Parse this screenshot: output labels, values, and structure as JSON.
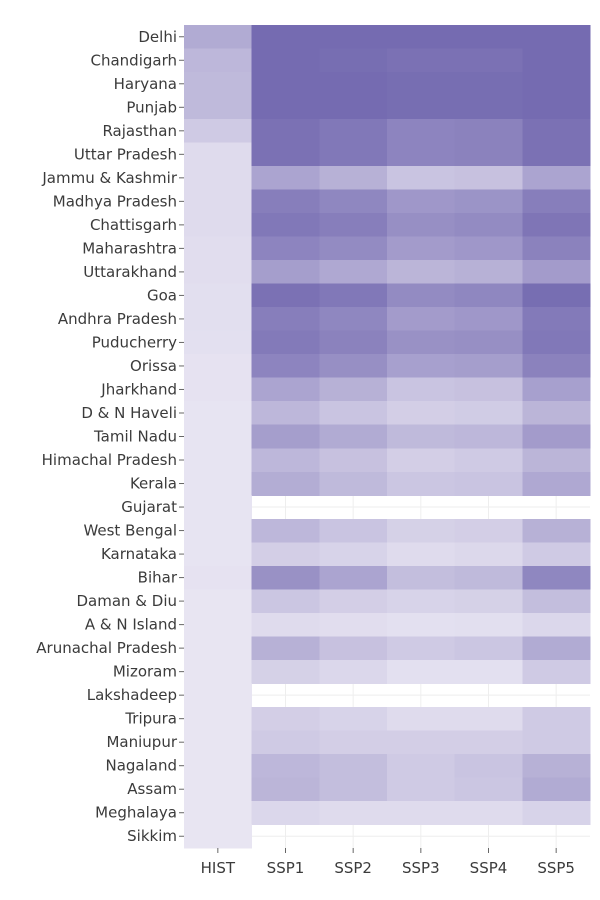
{
  "chart_data": {
    "type": "heatmap",
    "title": "",
    "xlabel": "",
    "ylabel": "",
    "colorscale": {
      "low": "#edeaf5",
      "high": "#756bb1"
    },
    "value_range": [
      0,
      1
    ],
    "x": [
      "HIST",
      "SSP1",
      "SSP2",
      "SSP3",
      "SSP4",
      "SSP5"
    ],
    "y": [
      "Delhi",
      "Chandigarh",
      "Haryana",
      "Punjab",
      "Rajasthan",
      "Uttar Pradesh",
      "Jammu & Kashmir",
      "Madhya Pradesh",
      "Chattisgarh",
      "Maharashtra",
      "Uttarakhand",
      "Goa",
      "Andhra Pradesh",
      "Puducherry",
      "Orissa",
      "Jharkhand",
      "D & N Haveli",
      "Tamil Nadu",
      "Himachal Pradesh",
      "Kerala",
      "Gujarat",
      "West Bengal",
      "Karnataka",
      "Bihar",
      "Daman & Diu",
      "A & N Island",
      "Arunachal Pradesh",
      "Mizoram",
      "Lakshadeep",
      "Tripura",
      "Maniupur",
      "Nagaland",
      "Assam",
      "Meghalaya",
      "Sikkim"
    ],
    "z": [
      [
        0.5,
        1.0,
        1.0,
        1.0,
        1.0,
        1.0
      ],
      [
        0.4,
        1.0,
        0.98,
        0.95,
        0.95,
        1.0
      ],
      [
        0.38,
        1.0,
        1.0,
        0.98,
        0.98,
        1.0
      ],
      [
        0.38,
        1.0,
        1.0,
        0.98,
        0.98,
        1.0
      ],
      [
        0.25,
        0.95,
        0.9,
        0.8,
        0.82,
        0.95
      ],
      [
        0.12,
        0.95,
        0.9,
        0.8,
        0.82,
        0.95
      ],
      [
        0.12,
        0.55,
        0.45,
        0.3,
        0.32,
        0.55
      ],
      [
        0.12,
        0.85,
        0.78,
        0.65,
        0.68,
        0.85
      ],
      [
        0.12,
        0.9,
        0.85,
        0.72,
        0.75,
        0.92
      ],
      [
        0.1,
        0.8,
        0.75,
        0.62,
        0.65,
        0.82
      ],
      [
        0.1,
        0.6,
        0.52,
        0.42,
        0.45,
        0.62
      ],
      [
        0.09,
        0.95,
        0.9,
        0.75,
        0.78,
        0.98
      ],
      [
        0.09,
        0.85,
        0.78,
        0.62,
        0.65,
        0.88
      ],
      [
        0.08,
        0.88,
        0.82,
        0.7,
        0.72,
        0.9
      ],
      [
        0.06,
        0.8,
        0.72,
        0.58,
        0.6,
        0.82
      ],
      [
        0.06,
        0.55,
        0.45,
        0.3,
        0.32,
        0.58
      ],
      [
        0.05,
        0.4,
        0.3,
        0.22,
        0.24,
        0.42
      ],
      [
        0.05,
        0.6,
        0.5,
        0.38,
        0.4,
        0.62
      ],
      [
        0.05,
        0.4,
        0.32,
        0.22,
        0.25,
        0.42
      ],
      [
        0.05,
        0.48,
        0.38,
        0.28,
        0.3,
        0.52
      ],
      [
        0.05,
        null,
        null,
        null,
        null,
        null
      ],
      [
        0.05,
        0.4,
        0.3,
        0.2,
        0.22,
        0.45
      ],
      [
        0.05,
        0.22,
        0.18,
        0.12,
        0.14,
        0.25
      ],
      [
        0.06,
        0.7,
        0.55,
        0.35,
        0.38,
        0.78
      ],
      [
        0.04,
        0.28,
        0.22,
        0.18,
        0.2,
        0.35
      ],
      [
        0.04,
        0.12,
        0.1,
        0.08,
        0.09,
        0.15
      ],
      [
        0.04,
        0.45,
        0.32,
        0.25,
        0.28,
        0.5
      ],
      [
        0.04,
        0.2,
        0.15,
        0.08,
        0.08,
        0.25
      ],
      [
        0.04,
        null,
        null,
        null,
        null,
        null
      ],
      [
        0.04,
        0.22,
        0.18,
        0.12,
        0.12,
        0.25
      ],
      [
        0.04,
        0.25,
        0.22,
        0.22,
        0.22,
        0.25
      ],
      [
        0.04,
        0.4,
        0.35,
        0.25,
        0.3,
        0.45
      ],
      [
        0.04,
        0.42,
        0.35,
        0.25,
        0.28,
        0.5
      ],
      [
        0.04,
        0.15,
        0.12,
        0.12,
        0.12,
        0.18
      ],
      [
        0.04,
        null,
        null,
        null,
        null,
        null
      ]
    ]
  }
}
